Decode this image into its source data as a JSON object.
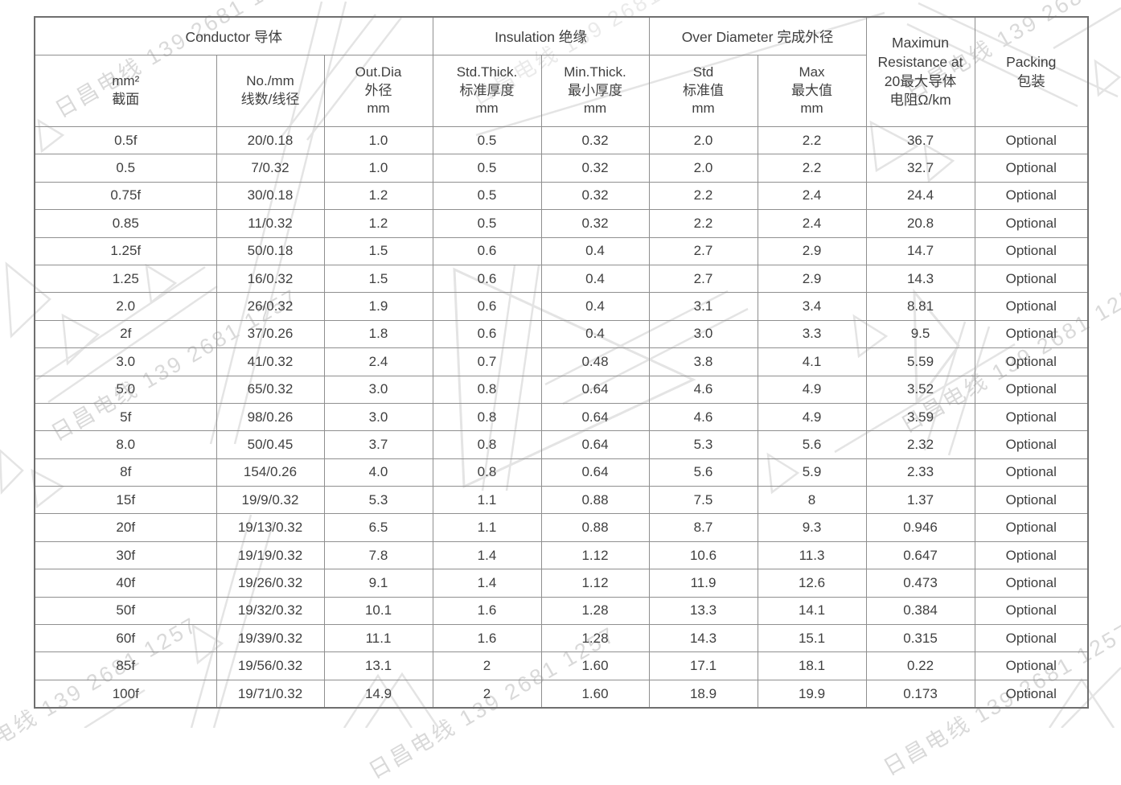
{
  "watermark": {
    "text": "日昌电线 139 2681 1257",
    "text_color": "#d9d9d9",
    "shape_color": "#e4e4e4"
  },
  "table": {
    "header_groups": [
      {
        "label": "Conductor 导体",
        "colspan": 3
      },
      {
        "label": "Insulation 绝缘",
        "colspan": 2
      },
      {
        "label": "Over Diameter 完成外径",
        "colspan": 2
      }
    ],
    "subheaders": [
      "mm²\n截面",
      "No./mm\n线数/线径",
      "Out.Dia\n外径\nmm",
      "Std.Thick.\n标准厚度\nmm",
      "Min.Thick.\n最小厚度\nmm",
      "Std\n标准值\nmm",
      "Max\n最大值\nmm"
    ],
    "span_headers": [
      "Maximun\nResistance at\n20最大导体\n电阻Ω/km",
      "Packing\n包装"
    ],
    "rows": [
      [
        "0.5f",
        "20/0.18",
        "1.0",
        "0.5",
        "0.32",
        "2.0",
        "2.2",
        "36.7",
        "Optional"
      ],
      [
        "0.5",
        "7/0.32",
        "1.0",
        "0.5",
        "0.32",
        "2.0",
        "2.2",
        "32.7",
        "Optional"
      ],
      [
        "0.75f",
        "30/0.18",
        "1.2",
        "0.5",
        "0.32",
        "2.2",
        "2.4",
        "24.4",
        "Optional"
      ],
      [
        "0.85",
        "11/0.32",
        "1.2",
        "0.5",
        "0.32",
        "2.2",
        "2.4",
        "20.8",
        "Optional"
      ],
      [
        "1.25f",
        "50/0.18",
        "1.5",
        "0.6",
        "0.4",
        "2.7",
        "2.9",
        "14.7",
        "Optional"
      ],
      [
        "1.25",
        "16/0.32",
        "1.5",
        "0.6",
        "0.4",
        "2.7",
        "2.9",
        "14.3",
        "Optional"
      ],
      [
        "2.0",
        "26/0.32",
        "1.9",
        "0.6",
        "0.4",
        "3.1",
        "3.4",
        "8.81",
        "Optional"
      ],
      [
        "2f",
        "37/0.26",
        "1.8",
        "0.6",
        "0.4",
        "3.0",
        "3.3",
        "9.5",
        "Optional"
      ],
      [
        "3.0",
        "41/0.32",
        "2.4",
        "0.7",
        "0.48",
        "3.8",
        "4.1",
        "5.59",
        "Optional"
      ],
      [
        "5.0",
        "65/0.32",
        "3.0",
        "0.8",
        "0.64",
        "4.6",
        "4.9",
        "3.52",
        "Optional"
      ],
      [
        "5f",
        "98/0.26",
        "3.0",
        "0.8",
        "0.64",
        "4.6",
        "4.9",
        "3.59",
        "Optional"
      ],
      [
        "8.0",
        "50/0.45",
        "3.7",
        "0.8",
        "0.64",
        "5.3",
        "5.6",
        "2.32",
        "Optional"
      ],
      [
        "8f",
        "154/0.26",
        "4.0",
        "0.8",
        "0.64",
        "5.6",
        "5.9",
        "2.33",
        "Optional"
      ],
      [
        "15f",
        "19/9/0.32",
        "5.3",
        "1.1",
        "0.88",
        "7.5",
        "8",
        "1.37",
        "Optional"
      ],
      [
        "20f",
        "19/13/0.32",
        "6.5",
        "1.1",
        "0.88",
        "8.7",
        "9.3",
        "0.946",
        "Optional"
      ],
      [
        "30f",
        "19/19/0.32",
        "7.8",
        "1.4",
        "1.12",
        "10.6",
        "11.3",
        "0.647",
        "Optional"
      ],
      [
        "40f",
        "19/26/0.32",
        "9.1",
        "1.4",
        "1.12",
        "11.9",
        "12.6",
        "0.473",
        "Optional"
      ],
      [
        "50f",
        "19/32/0.32",
        "10.1",
        "1.6",
        "1.28",
        "13.3",
        "14.1",
        "0.384",
        "Optional"
      ],
      [
        "60f",
        "19/39/0.32",
        "11.1",
        "1.6",
        "1.28",
        "14.3",
        "15.1",
        "0.315",
        "Optional"
      ],
      [
        "85f",
        "19/56/0.32",
        "13.1",
        "2",
        "1.60",
        "17.1",
        "18.1",
        "0.22",
        "Optional"
      ],
      [
        "100f",
        "19/71/0.32",
        "14.9",
        "2",
        "1.60",
        "18.9",
        "19.9",
        "0.173",
        "Optional"
      ]
    ]
  }
}
